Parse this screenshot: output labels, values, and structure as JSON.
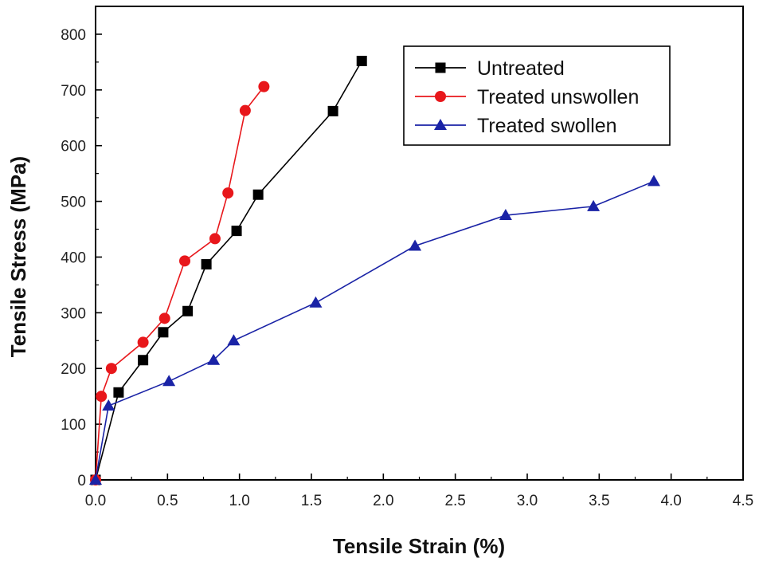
{
  "chart_data": {
    "type": "line",
    "title": "",
    "xlabel": "Tensile Strain (%)",
    "ylabel": "Tensile Stress (MPa)",
    "xlim": [
      0,
      4.5
    ],
    "ylim": [
      0,
      850
    ],
    "x_ticks": [
      "0.0",
      "0.5",
      "1.0",
      "1.5",
      "2.0",
      "2.5",
      "3.0",
      "3.5",
      "4.0",
      "4.5"
    ],
    "y_ticks": [
      "0",
      "100",
      "200",
      "300",
      "400",
      "500",
      "600",
      "700",
      "800"
    ],
    "grid": false,
    "legend_position": "top-right",
    "series": [
      {
        "name": "Untreated",
        "color": "#000000",
        "marker": "square",
        "x": [
          0,
          0.16,
          0.33,
          0.47,
          0.64,
          0.77,
          0.98,
          1.13,
          1.65,
          1.85
        ],
        "y": [
          0,
          157,
          215,
          265,
          303,
          387,
          447,
          512,
          662,
          752
        ]
      },
      {
        "name": "Treated unswollen",
        "color": "#e8171b",
        "marker": "circle",
        "x": [
          0,
          0.04,
          0.11,
          0.33,
          0.48,
          0.62,
          0.83,
          0.92,
          1.04,
          1.17
        ],
        "y": [
          0,
          150,
          200,
          247,
          290,
          393,
          433,
          515,
          663,
          706
        ]
      },
      {
        "name": "Treated swollen",
        "color": "#1a23a6",
        "marker": "triangle",
        "x": [
          0,
          0.09,
          0.51,
          0.82,
          0.96,
          1.53,
          2.22,
          2.85,
          3.46,
          3.88
        ],
        "y": [
          0,
          133,
          177,
          215,
          250,
          318,
          420,
          475,
          491,
          536
        ]
      }
    ]
  }
}
